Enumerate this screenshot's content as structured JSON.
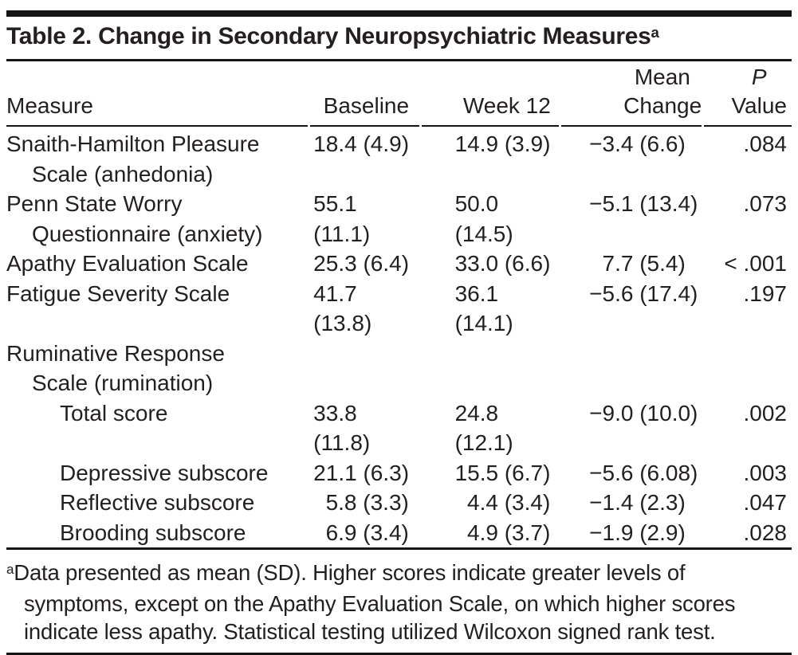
{
  "title": {
    "text": "Table 2. Change in Secondary Neuropsychiatric Measures",
    "superscript": "a"
  },
  "header": {
    "measure": "Measure",
    "baseline": "Baseline",
    "week12": "Week 12",
    "change": [
      "Mean",
      "Change"
    ],
    "p": [
      "P",
      "Value"
    ]
  },
  "rows": [
    {
      "name": "Snaith-Hamilton Pleasure",
      "name_cont": "Scale (anhedonia)",
      "baseline": "18.4 (4.9)",
      "week12": "14.9 (3.9)",
      "change": "−3.4 (6.6)",
      "p": ".084"
    },
    {
      "name": "Penn State Worry",
      "name_cont": "Questionnaire (anxiety)",
      "baseline": "55.1 (11.1)",
      "week12": "50.0 (14.5)",
      "change": "−5.1 (13.4)",
      "p": ".073"
    },
    {
      "name": "Apathy Evaluation Scale",
      "baseline": "25.3 (6.4)",
      "week12": "33.0 (6.6)",
      "change": "7.7 (5.4)",
      "p": "< .001"
    },
    {
      "name": "Fatigue Severity Scale",
      "baseline": "41.7 (13.8)",
      "week12": "36.1 (14.1)",
      "change": "−5.6 (17.4)",
      "p": ".197"
    },
    {
      "name": "Ruminative Response",
      "name_cont": "Scale (rumination)",
      "baseline": "",
      "week12": "",
      "change": "",
      "p": ""
    },
    {
      "name": "Total score",
      "baseline": "33.8 (11.8)",
      "week12": "24.8 (12.1)",
      "change": "−9.0 (10.0)",
      "p": ".002"
    },
    {
      "name": "Depressive subscore",
      "baseline": "21.1 (6.3)",
      "week12": "15.5 (6.7)",
      "change": "−5.6 (6.08)",
      "p": ".003"
    },
    {
      "name": "Reflective subscore",
      "baseline": "5.8 (3.3)",
      "week12": "4.4 (3.4)",
      "change": "−1.4 (2.3)",
      "p": ".047"
    },
    {
      "name": "Brooding subscore",
      "baseline": "6.9 (3.4)",
      "week12": "4.9 (3.7)",
      "change": "−1.9 (2.9)",
      "p": ".028"
    }
  ],
  "footnote": {
    "marker": "a",
    "text": "Data presented as mean (SD). Higher scores indicate greater levels of symptoms, except on the Apathy Evaluation Scale, on which higher scores indicate less apathy. Statistical testing utilized Wilcoxon signed rank test."
  },
  "colors": {
    "text": "#231f20",
    "rule": "#161414",
    "background": "#ffffff"
  }
}
